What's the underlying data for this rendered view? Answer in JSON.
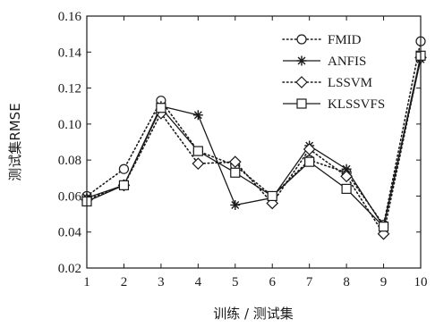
{
  "chart_data": {
    "type": "line",
    "x": [
      1,
      2,
      3,
      4,
      5,
      6,
      7,
      8,
      9,
      10
    ],
    "xlabel": "训练 / 测试集",
    "ylabel": "测试集RMSE",
    "xlim": [
      1,
      10
    ],
    "ylim": [
      0.02,
      0.16
    ],
    "yticks": [
      "0.02",
      "0.04",
      "0.06",
      "0.08",
      "0.10",
      "0.12",
      "0.14",
      "0.16"
    ],
    "xticks": [
      "1",
      "2",
      "3",
      "4",
      "5",
      "6",
      "7",
      "8",
      "9",
      "10"
    ],
    "grid": false,
    "legend_position": "top-right",
    "series": [
      {
        "name": "FMID",
        "marker": "circle",
        "line": "dotted",
        "values": [
          0.06,
          0.075,
          0.113,
          0.085,
          0.077,
          0.06,
          0.08,
          0.073,
          0.044,
          0.146
        ]
      },
      {
        "name": "ANFIS",
        "marker": "asterisk",
        "line": "solid",
        "values": [
          0.059,
          0.066,
          0.11,
          0.105,
          0.055,
          0.059,
          0.088,
          0.075,
          0.043,
          0.136
        ]
      },
      {
        "name": "LSSVM",
        "marker": "diamond",
        "line": "dotted",
        "values": [
          0.058,
          0.066,
          0.106,
          0.078,
          0.079,
          0.056,
          0.086,
          0.071,
          0.039,
          0.137
        ]
      },
      {
        "name": "KLSSVFS",
        "marker": "square",
        "line": "solid",
        "values": [
          0.057,
          0.066,
          0.109,
          0.085,
          0.073,
          0.06,
          0.079,
          0.064,
          0.043,
          0.138
        ]
      }
    ]
  }
}
